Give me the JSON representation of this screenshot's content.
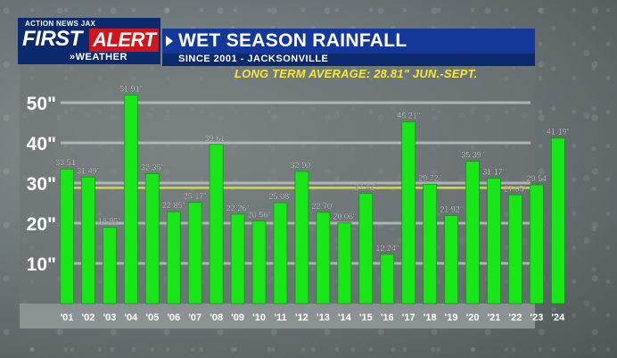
{
  "header": {
    "station": "ACTION NEWS JAX",
    "brand_first": "FIRST",
    "brand_alert": "ALERT",
    "brand_weather": "»WEATHER",
    "title": "WET SEASON RAINFALL",
    "subtitle": "SINCE 2001 - JACKSONVILLE"
  },
  "colors": {
    "bar": "#19e619",
    "bar_edge": "#0c9a0c",
    "plot_bg": "#6b7375",
    "axis_band": "#8b9294",
    "gridline": "#bfc4c6",
    "average_line": "#d9d936",
    "average_text": "#f2ea3a",
    "header_blue": "#14379a",
    "header_navy": "#0b2a6e",
    "alert_red": "#d0161d"
  },
  "chart_data": {
    "type": "bar",
    "title": "WET SEASON RAINFALL",
    "subtitle": "SINCE 2001 - JACKSONVILLE",
    "categories": [
      "'01",
      "'02",
      "'03",
      "'04",
      "'05",
      "'06",
      "'07",
      "'08",
      "'09",
      "'10",
      "'11",
      "'12",
      "'13",
      "'14",
      "'15",
      "'16",
      "'17",
      "'18",
      "'19",
      "'20",
      "'21",
      "'22",
      "'23",
      "'24"
    ],
    "values": [
      33.51,
      31.49,
      18.95,
      51.91,
      32.35,
      22.85,
      25.17,
      39.61,
      22.26,
      20.56,
      25.08,
      32.9,
      22.7,
      20.06,
      27.42,
      12.24,
      45.21,
      29.72,
      21.92,
      35.39,
      31.17,
      27.05,
      29.54,
      41.19
    ],
    "value_labels": [
      "33.51\"",
      "31.49\"",
      "18.95\"",
      "51.91\"",
      "32.35\"",
      "22.85\"",
      "25.17\"",
      "39.61\"",
      "22.26\"",
      "20.56\"",
      "25.08\"",
      "32.90\"",
      "22.70\"",
      "20.06\"",
      "27.42\"",
      "12.24\"",
      "45.21\"",
      "29.72\"",
      "21.92\"",
      "35.39\"",
      "31.17\"",
      "27.05\"",
      "29.54",
      "41.19\""
    ],
    "y_ticks": [
      10,
      20,
      30,
      40,
      50
    ],
    "y_tick_labels": [
      "10\"",
      "20\"",
      "30\"",
      "40\"",
      "50\""
    ],
    "ylim": [
      0,
      53
    ],
    "grid": true,
    "average": 28.81,
    "average_label": "LONG TERM AVERAGE: 28.81\" JUN.-SEPT."
  }
}
